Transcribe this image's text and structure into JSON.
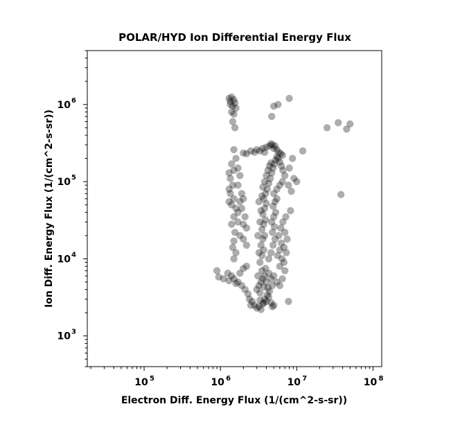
{
  "chart_data": {
    "type": "scatter",
    "title": "POLAR/HYD  Ion Differential Energy Flux",
    "xlabel": "Electron Diff. Energy Flux (1/(cm^2-s-sr))",
    "ylabel": "Ion Diff. Energy Flux (1/(cm^2-s-sr))",
    "x_scale": "log",
    "y_scale": "log",
    "xlim": [
      18000,
      130000000
    ],
    "ylim": [
      400,
      5000000
    ],
    "x_ticks": [
      {
        "value": 100000,
        "base": "10",
        "exp": "5"
      },
      {
        "value": 1000000,
        "base": "10",
        "exp": "6"
      },
      {
        "value": 10000000,
        "base": "10",
        "exp": "7"
      },
      {
        "value": 100000000,
        "base": "10",
        "exp": "8"
      }
    ],
    "y_ticks": [
      {
        "value": 1000,
        "base": "10",
        "exp": "3"
      },
      {
        "value": 10000,
        "base": "10",
        "exp": "4"
      },
      {
        "value": 100000,
        "base": "10",
        "exp": "5"
      },
      {
        "value": 1000000,
        "base": "10",
        "exp": "6"
      }
    ],
    "grid": false,
    "marker_color": "#000000",
    "marker_opacity": 0.32,
    "series": [
      {
        "points": [
          [
            1300000,
            1200000
          ],
          [
            1400000,
            1250000
          ],
          [
            1500000,
            1150000
          ],
          [
            1350000,
            1000000
          ],
          [
            1450000,
            950000
          ],
          [
            1550000,
            1050000
          ],
          [
            1400000,
            800000
          ],
          [
            1500000,
            750000
          ],
          [
            1450000,
            600000
          ],
          [
            1550000,
            500000
          ],
          [
            1350000,
            1100000
          ],
          [
            1600000,
            900000
          ],
          [
            5000000,
            950000
          ],
          [
            5700000,
            1000000
          ],
          [
            4700000,
            700000
          ],
          [
            8000000,
            1200000
          ],
          [
            12000000,
            250000
          ],
          [
            25000000,
            500000
          ],
          [
            35000000,
            580000
          ],
          [
            45000000,
            480000
          ],
          [
            50000000,
            560000
          ],
          [
            38000000,
            68000
          ],
          [
            2200000,
            230000
          ],
          [
            2500000,
            250000
          ],
          [
            2800000,
            240000
          ],
          [
            3000000,
            260000
          ],
          [
            3300000,
            250000
          ],
          [
            3600000,
            270000
          ],
          [
            4000000,
            280000
          ],
          [
            4400000,
            290000
          ],
          [
            4800000,
            300000
          ],
          [
            5200000,
            290000
          ],
          [
            5500000,
            260000
          ],
          [
            5800000,
            240000
          ],
          [
            6200000,
            230000
          ],
          [
            2000000,
            235000
          ],
          [
            3800000,
            240000
          ],
          [
            4600000,
            310000
          ],
          [
            5000000,
            270000
          ],
          [
            6500000,
            220000
          ],
          [
            1500000,
            260000
          ],
          [
            1600000,
            200000
          ],
          [
            1400000,
            170000
          ],
          [
            1500000,
            140000
          ],
          [
            1350000,
            110000
          ],
          [
            1450000,
            90000
          ],
          [
            1350000,
            70000
          ],
          [
            1500000,
            60000
          ],
          [
            1400000,
            50000
          ],
          [
            1600000,
            45000
          ],
          [
            1500000,
            35000
          ],
          [
            1400000,
            28000
          ],
          [
            1550000,
            22000
          ],
          [
            1500000,
            17000
          ],
          [
            1450000,
            14000
          ],
          [
            1600000,
            12000
          ],
          [
            1500000,
            10000
          ],
          [
            1700000,
            150000
          ],
          [
            1800000,
            120000
          ],
          [
            1700000,
            90000
          ],
          [
            1900000,
            70000
          ],
          [
            1800000,
            55000
          ],
          [
            1700000,
            40000
          ],
          [
            2000000,
            60000
          ],
          [
            1900000,
            45000
          ],
          [
            2100000,
            35000
          ],
          [
            2000000,
            28000
          ],
          [
            2200000,
            25000
          ],
          [
            1700000,
            30000
          ],
          [
            1800000,
            20000
          ],
          [
            2000000,
            18000
          ],
          [
            2200000,
            15000
          ],
          [
            1300000,
            130000
          ],
          [
            1300000,
            80000
          ],
          [
            1300000,
            55000
          ],
          [
            900000,
            7000
          ],
          [
            950000,
            5800
          ],
          [
            1100000,
            5500
          ],
          [
            1250000,
            6500
          ],
          [
            1300000,
            5200
          ],
          [
            1400000,
            6000
          ],
          [
            1500000,
            5500
          ],
          [
            1700000,
            5000
          ],
          [
            1900000,
            4500
          ],
          [
            2100000,
            4000
          ],
          [
            2300000,
            3500
          ],
          [
            2400000,
            3000
          ],
          [
            2500000,
            2500
          ],
          [
            2600000,
            2800
          ],
          [
            1800000,
            6500
          ],
          [
            2000000,
            7500
          ],
          [
            2200000,
            8000
          ],
          [
            1600000,
            4800
          ],
          [
            2800000,
            2500
          ],
          [
            3000000,
            2300
          ],
          [
            3200000,
            2400
          ],
          [
            3400000,
            2200
          ],
          [
            3600000,
            2600
          ],
          [
            3800000,
            3000
          ],
          [
            4000000,
            2800
          ],
          [
            4300000,
            3200
          ],
          [
            4600000,
            2700
          ],
          [
            5000000,
            2500
          ],
          [
            4800000,
            2400
          ],
          [
            7800000,
            2800
          ],
          [
            3300000,
            2900
          ],
          [
            3700000,
            2700
          ],
          [
            4100000,
            3400
          ],
          [
            3000000,
            4000
          ],
          [
            3200000,
            4500
          ],
          [
            3400000,
            5000
          ],
          [
            3600000,
            5500
          ],
          [
            3800000,
            6000
          ],
          [
            4000000,
            5000
          ],
          [
            4200000,
            4200
          ],
          [
            3100000,
            6000
          ],
          [
            3500000,
            7000
          ],
          [
            3900000,
            7500
          ],
          [
            4300000,
            6500
          ],
          [
            4600000,
            5500
          ],
          [
            5000000,
            6000
          ],
          [
            5500000,
            5000
          ],
          [
            6000000,
            4500
          ],
          [
            6500000,
            5500
          ],
          [
            7000000,
            7000
          ],
          [
            6800000,
            9000
          ],
          [
            3300000,
            3600
          ],
          [
            3700000,
            4300
          ],
          [
            4400000,
            3800
          ],
          [
            4800000,
            4500
          ],
          [
            3300000,
            9000
          ],
          [
            3500000,
            11000
          ],
          [
            3700000,
            13000
          ],
          [
            3400000,
            15000
          ],
          [
            3600000,
            18000
          ],
          [
            3800000,
            20000
          ],
          [
            3500000,
            24000
          ],
          [
            3700000,
            28000
          ],
          [
            3900000,
            32000
          ],
          [
            3600000,
            38000
          ],
          [
            3800000,
            45000
          ],
          [
            4000000,
            52000
          ],
          [
            3700000,
            60000
          ],
          [
            3900000,
            70000
          ],
          [
            4100000,
            80000
          ],
          [
            4300000,
            95000
          ],
          [
            4500000,
            110000
          ],
          [
            4700000,
            130000
          ],
          [
            4900000,
            150000
          ],
          [
            5100000,
            170000
          ],
          [
            5300000,
            190000
          ],
          [
            5500000,
            210000
          ],
          [
            5700000,
            200000
          ],
          [
            6000000,
            180000
          ],
          [
            6300000,
            160000
          ],
          [
            6600000,
            140000
          ],
          [
            7000000,
            120000
          ],
          [
            6500000,
            100000
          ],
          [
            6000000,
            90000
          ],
          [
            5500000,
            80000
          ],
          [
            5000000,
            70000
          ],
          [
            4300000,
            10000
          ],
          [
            4600000,
            12000
          ],
          [
            4900000,
            15000
          ],
          [
            5200000,
            18000
          ],
          [
            4800000,
            22000
          ],
          [
            5100000,
            26000
          ],
          [
            4700000,
            30000
          ],
          [
            5000000,
            35000
          ],
          [
            5300000,
            40000
          ],
          [
            4900000,
            48000
          ],
          [
            5200000,
            55000
          ],
          [
            5500000,
            60000
          ],
          [
            3200000,
            12000
          ],
          [
            3100000,
            20000
          ],
          [
            3300000,
            30000
          ],
          [
            3400000,
            42000
          ],
          [
            3200000,
            55000
          ],
          [
            3500000,
            65000
          ],
          [
            3600000,
            85000
          ],
          [
            3800000,
            100000
          ],
          [
            4000000,
            120000
          ],
          [
            4200000,
            140000
          ],
          [
            4400000,
            160000
          ],
          [
            4600000,
            175000
          ],
          [
            5600000,
            11000
          ],
          [
            6000000,
            13000
          ],
          [
            6300000,
            16000
          ],
          [
            5800000,
            20000
          ],
          [
            6200000,
            25000
          ],
          [
            6600000,
            30000
          ],
          [
            7000000,
            22000
          ],
          [
            7500000,
            18000
          ],
          [
            6800000,
            14000
          ],
          [
            7300000,
            12000
          ],
          [
            7200000,
            35000
          ],
          [
            6000000,
            8000
          ],
          [
            6400000,
            10000
          ],
          [
            8300000,
            42000
          ],
          [
            9200000,
            110000
          ],
          [
            10000000,
            100000
          ],
          [
            8800000,
            200000
          ],
          [
            8000000,
            150000
          ],
          [
            7800000,
            90000
          ],
          [
            8500000,
            75000
          ]
        ]
      }
    ]
  }
}
